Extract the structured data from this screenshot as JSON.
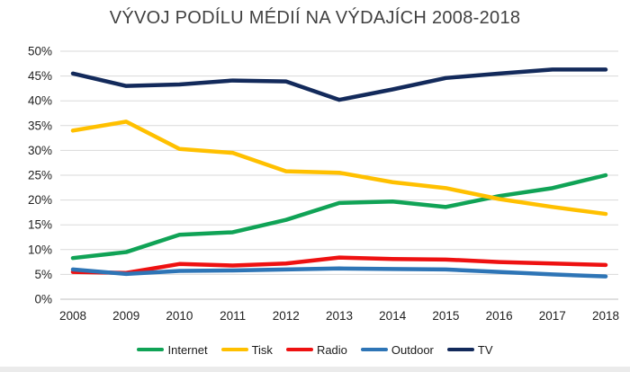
{
  "chart_data": {
    "type": "line",
    "title": "VÝVOJ PODÍLU MÉDIÍ NA VÝDAJÍCH 2008-2018",
    "categories": [
      "2008",
      "2009",
      "2010",
      "2011",
      "2012",
      "2013",
      "2014",
      "2015",
      "2016",
      "2017",
      "2018"
    ],
    "series": [
      {
        "name": "Internet",
        "color": "#10A356",
        "values": [
          8.3,
          9.5,
          13.0,
          13.5,
          16.0,
          19.4,
          19.7,
          18.6,
          20.8,
          22.4,
          25.0
        ]
      },
      {
        "name": "Tisk",
        "color": "#FFC000",
        "values": [
          34.0,
          35.8,
          30.3,
          29.5,
          25.8,
          25.5,
          23.6,
          22.4,
          20.2,
          18.6,
          17.2
        ]
      },
      {
        "name": "Radio",
        "color": "#EE1111",
        "values": [
          5.5,
          5.3,
          7.1,
          6.8,
          7.2,
          8.4,
          8.1,
          8.0,
          7.5,
          7.2,
          6.9
        ]
      },
      {
        "name": "Outdoor",
        "color": "#2E75B6",
        "values": [
          6.0,
          5.1,
          5.7,
          5.8,
          6.0,
          6.2,
          6.1,
          6.0,
          5.5,
          5.0,
          4.6
        ]
      },
      {
        "name": "TV",
        "color": "#132A5B",
        "values": [
          45.5,
          43.0,
          43.3,
          44.1,
          43.9,
          40.2,
          42.3,
          44.6,
          45.5,
          46.3,
          46.3
        ]
      }
    ],
    "xlabel": "",
    "ylabel": "",
    "ylim": [
      0,
      50
    ],
    "y_tick_step": 5,
    "y_tick_labels": [
      "0%",
      "5%",
      "10%",
      "15%",
      "20%",
      "25%",
      "30%",
      "35%",
      "40%",
      "45%",
      "50%"
    ],
    "grid": true,
    "legend_position": "bottom"
  },
  "colors": {
    "background": "#FFFFFF",
    "grid": "#D9D9D9",
    "axis": "#BFBFBF",
    "title": "#404040",
    "tick_label": "#1F1F1F",
    "bottom_strip": "#EBEBEB"
  }
}
